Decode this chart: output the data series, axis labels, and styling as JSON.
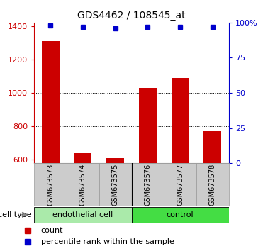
{
  "title": "GDS4462 / 108545_at",
  "samples": [
    "GSM673573",
    "GSM673574",
    "GSM673575",
    "GSM673576",
    "GSM673577",
    "GSM673578"
  ],
  "counts": [
    1310,
    640,
    610,
    1030,
    1090,
    770
  ],
  "percentile_ranks": [
    98,
    97,
    96,
    97,
    97,
    97
  ],
  "ylim_left": [
    580,
    1420
  ],
  "ylim_right": [
    0,
    100
  ],
  "yticks_left": [
    600,
    800,
    1000,
    1200,
    1400
  ],
  "yticks_right": [
    0,
    25,
    50,
    75,
    100
  ],
  "ytick_right_labels": [
    "0",
    "25",
    "50",
    "75",
    "100%"
  ],
  "bar_color": "#cc0000",
  "dot_color": "#0000cc",
  "cell_types": [
    {
      "label": "endothelial cell",
      "indices": [
        0,
        1,
        2
      ],
      "color": "#aaeaaa"
    },
    {
      "label": "control",
      "indices": [
        3,
        4,
        5
      ],
      "color": "#44dd44"
    }
  ],
  "cell_type_label": "cell type",
  "legend_count_label": "count",
  "legend_pct_label": "percentile rank within the sample",
  "background_color": "#ffffff",
  "xticklabel_bgcolor": "#cccccc",
  "grid_ticks": [
    800,
    1000,
    1200
  ],
  "n": 6,
  "bar_width": 0.55
}
